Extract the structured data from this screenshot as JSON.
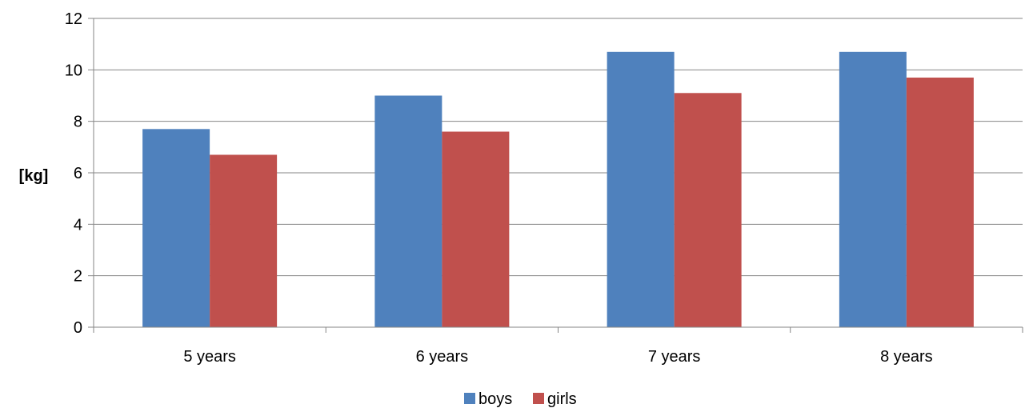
{
  "chart_data": {
    "type": "bar",
    "title": "",
    "xlabel": "",
    "ylabel": "[kg]",
    "categories": [
      "5 years",
      "6 years",
      "7 years",
      "8 years"
    ],
    "series": [
      {
        "name": "boys",
        "color": "#4f81bd",
        "values": [
          7.7,
          9.0,
          10.7,
          10.7
        ]
      },
      {
        "name": "girls",
        "color": "#c0504d",
        "values": [
          6.7,
          7.6,
          9.1,
          9.7
        ]
      }
    ],
    "ylim": [
      0,
      12
    ],
    "yticks": [
      "0",
      "2",
      "4",
      "6",
      "8",
      "10",
      "12"
    ],
    "grid": true,
    "gridline_color": "#868686",
    "legend_position": "bottom"
  }
}
